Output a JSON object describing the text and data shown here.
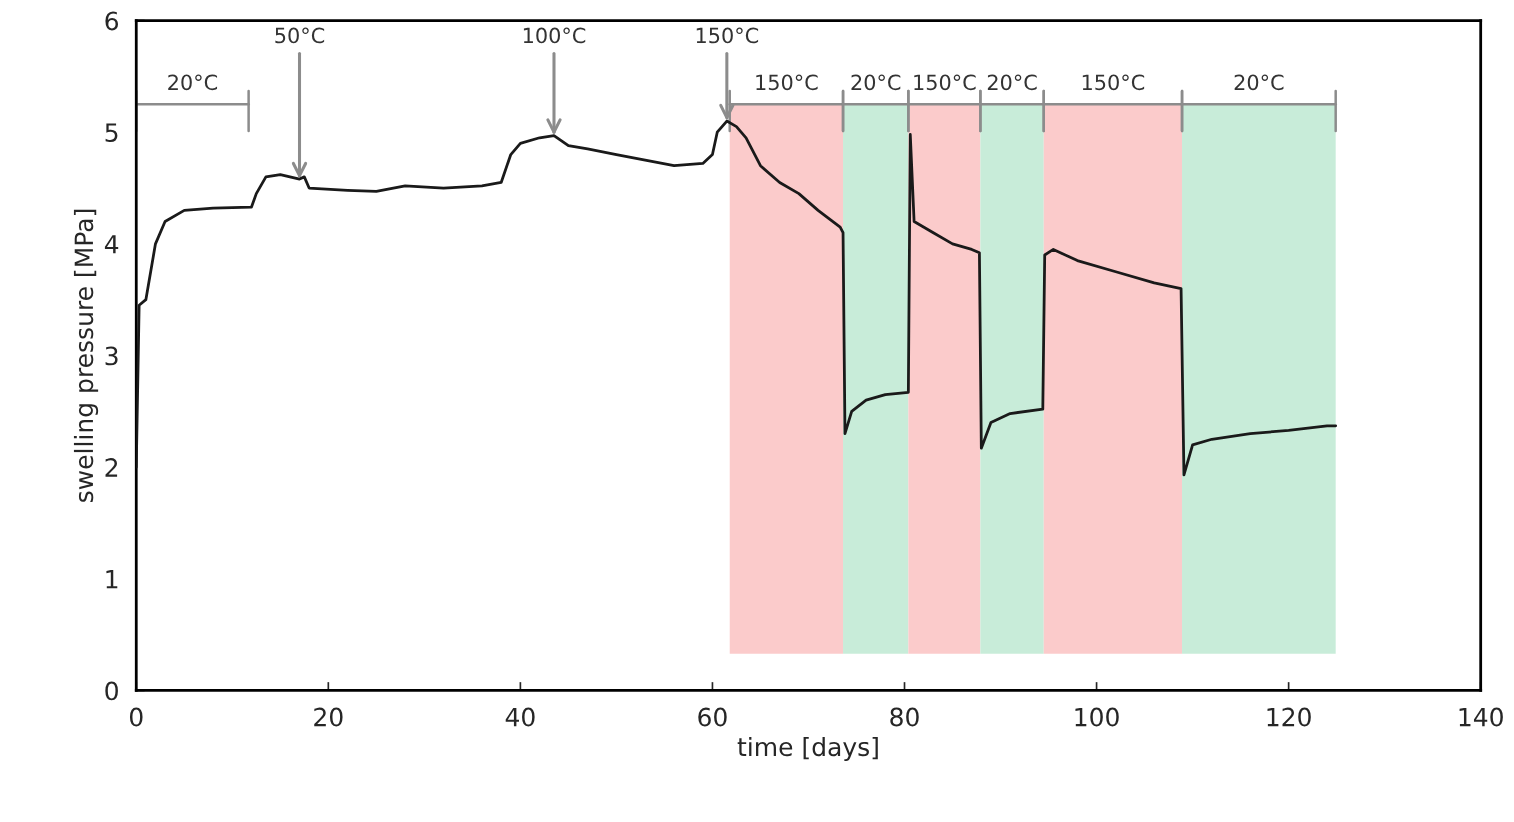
{
  "chart_data": {
    "type": "line",
    "xlabel": "time [days]",
    "ylabel": "swelling pressure [MPa]",
    "xlim": [
      0,
      140
    ],
    "xticks": [
      0,
      20,
      40,
      60,
      80,
      100,
      120,
      140
    ],
    "ylim": [
      0,
      6
    ],
    "yticks": [
      0,
      1,
      2,
      3,
      4,
      5,
      6
    ],
    "grid": false,
    "legend": false,
    "series": [
      {
        "color": "#1a1a1a",
        "x": [
          0,
          0.3,
          1,
          2,
          3,
          5,
          8,
          12,
          12.5,
          13.5,
          15,
          17,
          17.5,
          18,
          22,
          25,
          28,
          32,
          36,
          38,
          39,
          40,
          42,
          43.5,
          45,
          47,
          50,
          53,
          56,
          59,
          60,
          60.5,
          61.5,
          62.5,
          63.5,
          65,
          67,
          69,
          71,
          73.3,
          73.6,
          73.8,
          74.5,
          76,
          78,
          80.4,
          80.6,
          81,
          83,
          85,
          87,
          87.8,
          88,
          89,
          91,
          94.4,
          94.6,
          95.5,
          98,
          102,
          106,
          108.8,
          109.1,
          110,
          112,
          116,
          120,
          124,
          124.9
        ],
        "values": [
          2.0,
          3.45,
          3.5,
          4.0,
          4.2,
          4.3,
          4.32,
          4.33,
          4.45,
          4.6,
          4.62,
          4.58,
          4.6,
          4.5,
          4.48,
          4.47,
          4.52,
          4.5,
          4.52,
          4.55,
          4.8,
          4.9,
          4.95,
          4.97,
          4.88,
          4.85,
          4.8,
          4.75,
          4.7,
          4.72,
          4.8,
          5.0,
          5.1,
          5.05,
          4.95,
          4.7,
          4.55,
          4.45,
          4.3,
          4.15,
          4.1,
          2.3,
          2.5,
          2.6,
          2.65,
          2.67,
          4.98,
          4.2,
          4.1,
          4.0,
          3.95,
          3.92,
          2.17,
          2.4,
          2.48,
          2.52,
          3.9,
          3.95,
          3.85,
          3.75,
          3.65,
          3.6,
          1.93,
          2.2,
          2.25,
          2.3,
          2.33,
          2.37,
          2.37
        ]
      }
    ],
    "bands": [
      {
        "axis": "x",
        "from": 61.8,
        "to": 73.6,
        "label": "150°C",
        "color": "#fbcbcb"
      },
      {
        "axis": "x",
        "from": 73.6,
        "to": 80.4,
        "label": "20°C",
        "color": "#c8ecd9"
      },
      {
        "axis": "x",
        "from": 80.4,
        "to": 87.9,
        "label": "150°C",
        "color": "#fbcbcb"
      },
      {
        "axis": "x",
        "from": 87.9,
        "to": 94.5,
        "label": "20°C",
        "color": "#c8ecd9"
      },
      {
        "axis": "x",
        "from": 94.5,
        "to": 108.9,
        "label": "150°C",
        "color": "#fbcbcb"
      },
      {
        "axis": "x",
        "from": 108.9,
        "to": 124.9,
        "label": "20°C",
        "color": "#c8ecd9"
      },
      {
        "axis": "x",
        "from": 0,
        "to": 11.7,
        "label": "20°C",
        "color": "#ffffff"
      }
    ],
    "annotations": [
      {
        "text": "50°C",
        "x": 17,
        "y": 4.58
      },
      {
        "text": "100°C",
        "x": 43.5,
        "y": 4.97
      },
      {
        "text": "150°C",
        "x": 61.5,
        "y": 5.1
      }
    ]
  }
}
